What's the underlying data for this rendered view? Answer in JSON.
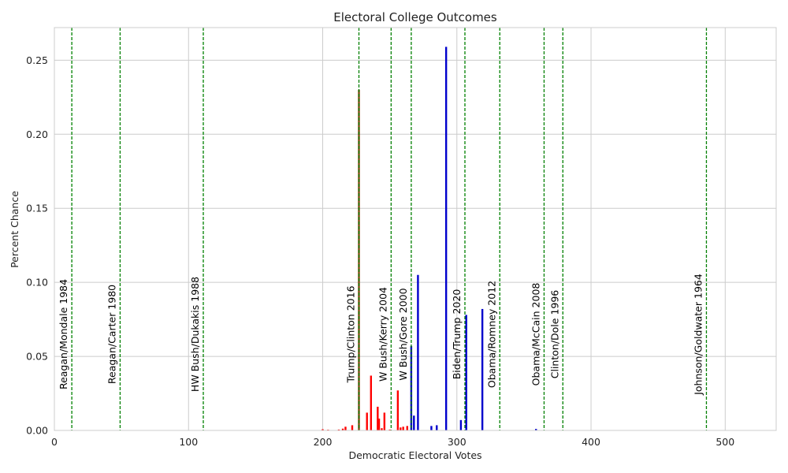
{
  "chart_data": {
    "type": "bar",
    "title": "Electoral College Outcomes",
    "xlabel": "Democratic Electoral Votes",
    "ylabel": "Percent Chance",
    "xlim": [
      0,
      538
    ],
    "ylim": [
      0,
      0.272
    ],
    "xticks": [
      0,
      100,
      200,
      300,
      400,
      500
    ],
    "xtick_labels": [
      "0",
      "100",
      "200",
      "300",
      "400",
      "500"
    ],
    "yticks": [
      0.0,
      0.05,
      0.1,
      0.15,
      0.2,
      0.25
    ],
    "ytick_labels": [
      "0.00",
      "0.05",
      "0.10",
      "0.15",
      "0.20",
      "0.25"
    ],
    "grid": true,
    "colors": {
      "republican": "#ff0000",
      "democratic": "#0000cc",
      "reference": "#008000",
      "tie": "#8b4513"
    },
    "series": [
      {
        "color": "#ff0000",
        "points": [
          {
            "x": 200,
            "y": 0.0008
          },
          {
            "x": 204,
            "y": 0.0005
          },
          {
            "x": 212,
            "y": 0.0006
          },
          {
            "x": 215,
            "y": 0.0012
          },
          {
            "x": 217,
            "y": 0.0025
          },
          {
            "x": 222,
            "y": 0.0035
          },
          {
            "x": 233,
            "y": 0.012
          },
          {
            "x": 236,
            "y": 0.037
          },
          {
            "x": 241,
            "y": 0.016
          },
          {
            "x": 242,
            "y": 0.008
          },
          {
            "x": 244,
            "y": 0.0015
          },
          {
            "x": 246,
            "y": 0.012
          },
          {
            "x": 250,
            "y": 0.0006
          },
          {
            "x": 256,
            "y": 0.027
          },
          {
            "x": 258,
            "y": 0.002
          },
          {
            "x": 260,
            "y": 0.0025
          },
          {
            "x": 263,
            "y": 0.003
          }
        ]
      },
      {
        "color": "#0000cc",
        "points": [
          {
            "x": 266,
            "y": 0.057
          },
          {
            "x": 268,
            "y": 0.01
          },
          {
            "x": 271,
            "y": 0.105
          },
          {
            "x": 281,
            "y": 0.003
          },
          {
            "x": 285,
            "y": 0.0035
          },
          {
            "x": 292,
            "y": 0.259
          },
          {
            "x": 303,
            "y": 0.007
          },
          {
            "x": 307,
            "y": 0.078
          },
          {
            "x": 319,
            "y": 0.082
          },
          {
            "x": 359,
            "y": 0.001
          }
        ]
      },
      {
        "color": "#8b4513",
        "points": [
          {
            "x": 227,
            "y": 0.23
          }
        ]
      }
    ],
    "reference_lines": [
      {
        "x": 13,
        "label": "Reagan/Mondale 1984"
      },
      {
        "x": 49,
        "label": "Reagan/Carter 1980"
      },
      {
        "x": 111,
        "label": "HW Bush/Dukakis 1988"
      },
      {
        "x": 227,
        "label": "Trump/Clinton 2016"
      },
      {
        "x": 251,
        "label": "W Bush/Kerry 2004"
      },
      {
        "x": 266,
        "label": "W Bush/Gore 2000"
      },
      {
        "x": 306,
        "label": "Biden/Trump 2020"
      },
      {
        "x": 332,
        "label": "Obama/Romney 2012"
      },
      {
        "x": 365,
        "label": "Obama/McCain 2008"
      },
      {
        "x": 379,
        "label": "Clinton/Dole 1996"
      },
      {
        "x": 486,
        "label": "Johnson/Goldwater 1964"
      }
    ]
  }
}
